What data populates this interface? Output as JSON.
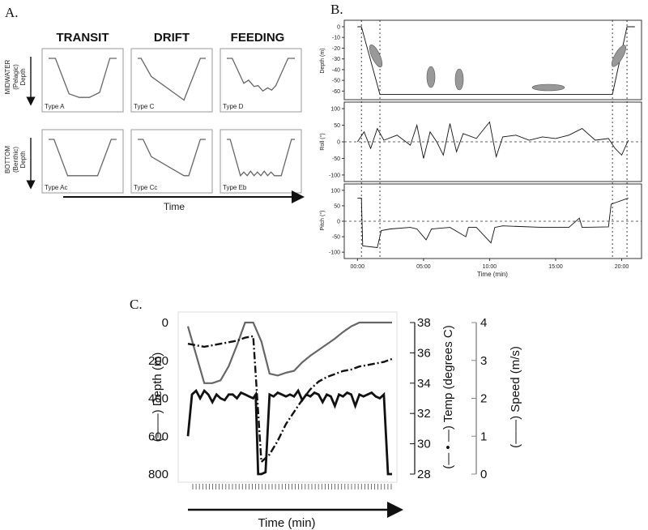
{
  "panel_a": {
    "letter": "A.",
    "columns": [
      "TRANSIT",
      "DRIFT",
      "FEEDING"
    ],
    "row1_label": "MIDWATER",
    "row1_sub": "(Pelagic)",
    "row2_label": "BOTTOM",
    "row2_sub": "(Benthic)",
    "depth_label": "Depth",
    "time_label": "Time",
    "types": [
      "Type A",
      "Type C",
      "Type D",
      "Type Ac",
      "Type Cc",
      "Type Eb"
    ]
  },
  "panel_b": {
    "letter": "B.",
    "depth_ylabel": "Depth (m)",
    "roll_ylabel": "Roll (°)",
    "pitch_ylabel": "Pitch (°)",
    "xlabel": "Time (min)",
    "x_ticks": [
      "00:00",
      "05:00",
      "10:00",
      "15:00",
      "20:00"
    ],
    "depth_ticks": [
      "0",
      "-10",
      "-20",
      "-30",
      "-40",
      "-50",
      "-60"
    ],
    "roll_ticks": [
      "100",
      "50",
      "0",
      "-50",
      "-100"
    ],
    "pitch_ticks": [
      "100",
      "50",
      "0",
      "-50",
      "-100"
    ]
  },
  "panel_c": {
    "letter": "C.",
    "depth_axis_label": "(——) Depth (m)",
    "temp_axis_label": "(— • —) Temp (degrees C)",
    "speed_axis_label": "(——) Speed (m/s)",
    "xlabel": "Time (min)",
    "depth_ticks": [
      "0",
      "200",
      "400",
      "600",
      "800"
    ],
    "temp_ticks": [
      "38",
      "36",
      "34",
      "32",
      "30",
      "28"
    ],
    "speed_ticks": [
      "4",
      "3",
      "2",
      "1",
      "0"
    ]
  },
  "colors": {
    "ink": "#111111",
    "grey_line": "#666666",
    "panel_border": "#999999"
  },
  "chart_data": [
    {
      "type": "line",
      "title": "",
      "panel": "A",
      "xlabel": "Time",
      "ylabel": "Depth",
      "series": [
        {
          "name": "Type A",
          "x": [
            0,
            0.1,
            0.3,
            0.45,
            0.6,
            0.75,
            0.9,
            1
          ],
          "y": [
            0,
            0,
            0.78,
            0.86,
            0.86,
            0.75,
            0,
            0
          ]
        },
        {
          "name": "Type C",
          "x": [
            0,
            0.05,
            0.2,
            0.68,
            0.92,
            1
          ],
          "y": [
            0,
            0,
            0.4,
            0.92,
            0,
            0
          ]
        },
        {
          "name": "Type D",
          "x": [
            0,
            0.08,
            0.25,
            0.32,
            0.4,
            0.46,
            0.53,
            0.6,
            0.66,
            0.72,
            0.9,
            1
          ],
          "y": [
            0,
            0,
            0.55,
            0.48,
            0.62,
            0.6,
            0.72,
            0.65,
            0.7,
            0.6,
            0,
            0
          ]
        },
        {
          "name": "Type Ac",
          "x": [
            0,
            0.08,
            0.28,
            0.72,
            0.92,
            1
          ],
          "y": [
            0,
            0,
            0.8,
            0.8,
            0,
            0
          ]
        },
        {
          "name": "Type Cc",
          "x": [
            0,
            0.08,
            0.2,
            0.68,
            0.75,
            0.92,
            1
          ],
          "y": [
            0,
            0,
            0.38,
            0.8,
            0.8,
            0,
            0
          ]
        },
        {
          "name": "Type Eb",
          "x": [
            0,
            0.05,
            0.2,
            0.25,
            0.3,
            0.35,
            0.4,
            0.45,
            0.5,
            0.55,
            0.6,
            0.65,
            0.7,
            0.75,
            0.8,
            0.95,
            1
          ],
          "y": [
            0,
            0,
            0.8,
            0.72,
            0.8,
            0.7,
            0.8,
            0.72,
            0.8,
            0.7,
            0.8,
            0.72,
            0.8,
            0.8,
            0.8,
            0,
            0
          ]
        }
      ]
    },
    {
      "type": "line",
      "title": "",
      "panel": "B",
      "xlabel": "Time (min)",
      "x_unit": "min",
      "xlim": [
        -1,
        21.5
      ],
      "series": [
        {
          "name": "Depth (m)",
          "ylim": [
            -65,
            3
          ],
          "x": [
            0,
            0.3,
            1.7,
            19.3,
            20.4,
            21
          ],
          "y": [
            0,
            0,
            -63,
            -63,
            0,
            0
          ]
        },
        {
          "name": "Roll (°)",
          "ylim": [
            -110,
            110
          ],
          "x": [
            0,
            0.5,
            1,
            1.5,
            2,
            3,
            4,
            4.5,
            5,
            5.5,
            6,
            6.5,
            7,
            7.5,
            8,
            9,
            10,
            10.5,
            11,
            12,
            13,
            14,
            15,
            16,
            17,
            18,
            19,
            19.5,
            20,
            20.5
          ],
          "y": [
            0,
            30,
            -20,
            40,
            5,
            20,
            -10,
            50,
            -50,
            30,
            0,
            -40,
            55,
            -30,
            25,
            10,
            60,
            -45,
            15,
            20,
            5,
            15,
            10,
            20,
            40,
            5,
            10,
            -20,
            -40,
            5
          ]
        },
        {
          "name": "Pitch (°)",
          "ylim": [
            -110,
            110
          ],
          "x": [
            0,
            0.3,
            0.4,
            1.5,
            1.8,
            2.5,
            4,
            4.5,
            5.2,
            5.6,
            7,
            8.2,
            8.4,
            9,
            10.1,
            10.4,
            11,
            14,
            16,
            16.8,
            17,
            19,
            19.2,
            20.5
          ],
          "y": [
            75,
            75,
            -80,
            -85,
            -30,
            -25,
            -20,
            -25,
            -60,
            -25,
            -20,
            -50,
            -20,
            -20,
            -70,
            -20,
            -15,
            -20,
            -20,
            10,
            -20,
            -18,
            55,
            75
          ]
        }
      ]
    },
    {
      "type": "line",
      "title": "",
      "panel": "C",
      "xlabel": "Time (min)",
      "series": [
        {
          "name": "Depth (m)",
          "ylim": [
            820,
            0
          ],
          "x": [
            0,
            1,
            2,
            3,
            4,
            5,
            6,
            7,
            8,
            9,
            10,
            11,
            12,
            13,
            14,
            15,
            16,
            17,
            18,
            19,
            20,
            21,
            22,
            23,
            24,
            25
          ],
          "y": [
            20,
            170,
            320,
            320,
            305,
            230,
            120,
            0,
            0,
            100,
            270,
            280,
            265,
            255,
            210,
            175,
            145,
            115,
            85,
            50,
            20,
            0,
            0,
            0,
            0,
            0
          ]
        },
        {
          "name": "Temp (degrees C)",
          "ylim": [
            27.5,
            38.3
          ],
          "x": [
            0,
            1,
            2,
            3,
            4,
            5,
            6,
            7,
            8,
            9,
            10,
            11,
            12,
            13,
            14,
            15,
            16,
            17,
            18,
            19,
            20,
            21,
            22,
            23,
            24,
            25
          ],
          "y": [
            36.6,
            36.5,
            36.4,
            36.5,
            36.6,
            36.7,
            36.8,
            37,
            37.1,
            28.8,
            29.3,
            30.2,
            31.3,
            32.1,
            32.9,
            33.6,
            34.1,
            34.4,
            34.6,
            34.8,
            34.9,
            35.1,
            35.2,
            35.3,
            35.4,
            35.6
          ]
        },
        {
          "name": "Speed (m/s)",
          "ylim": [
            0,
            4
          ],
          "x": [
            0,
            0.5,
            1,
            1.5,
            2,
            2.5,
            3,
            3.5,
            4,
            4.5,
            5,
            5.5,
            6,
            6.5,
            7,
            7.5,
            8,
            8.3,
            8.6,
            9,
            9.5,
            10,
            10.5,
            11,
            11.5,
            12,
            12.5,
            13,
            13.5,
            14,
            14.5,
            15,
            15.5,
            16,
            16.5,
            17,
            17.5,
            18,
            18.5,
            19,
            19.5,
            20,
            20.5,
            21,
            21.5,
            22,
            22.5,
            23,
            23.5,
            24,
            24.5,
            25
          ],
          "y": [
            1,
            2.1,
            2.2,
            2,
            2.2,
            2.1,
            1.9,
            2.1,
            2,
            1.95,
            2.1,
            2.1,
            2,
            2.15,
            2.1,
            2.05,
            2,
            2.1,
            0,
            0,
            0.05,
            2.1,
            2.05,
            2.15,
            2.1,
            2.05,
            2.1,
            2.05,
            2.2,
            1.95,
            2.1,
            2.05,
            2.15,
            2.1,
            1.9,
            2.1,
            2.05,
            1.8,
            2.1,
            2.05,
            2.15,
            2.1,
            1.8,
            2.1,
            2.05,
            2.1,
            2.15,
            2.05,
            2,
            2.1,
            0,
            0
          ]
        }
      ]
    }
  ]
}
